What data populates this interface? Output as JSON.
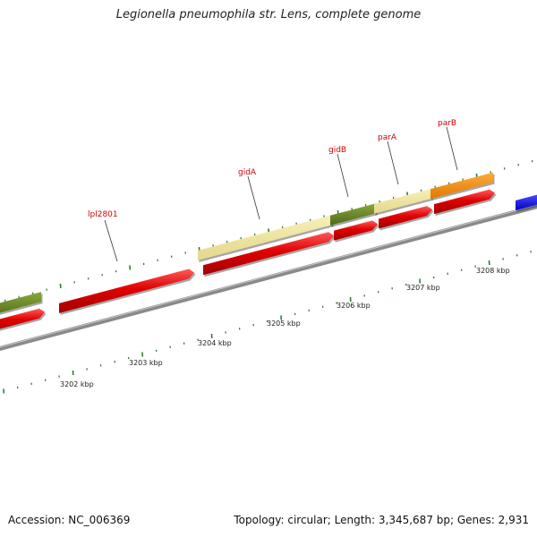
{
  "title": "Legionella pneumophila str. Lens, complete genome",
  "footer": {
    "accession": "Accession: NC_006369",
    "summary": "Topology: circular; Length: 3,345,687 bp; Genes: 2,931"
  },
  "colors": {
    "background": "#ffffff",
    "backbone": "#888888",
    "tick_mark": "#2e7d32",
    "gene_label": "#d40000",
    "cds_red": "#e00000",
    "feature_tan": "#eee39a",
    "feature_olive": "#6b8a24",
    "feature_orange": "#ff8c00",
    "feature_blue": "#1a1aff"
  },
  "ticks": [
    {
      "label": "3202 kbp"
    },
    {
      "label": "3203 kbp"
    },
    {
      "label": "3204 kbp"
    },
    {
      "label": "3205 kbp"
    },
    {
      "label": "3206 kbp"
    },
    {
      "label": "3207 kbp"
    },
    {
      "label": "3208 kbp"
    }
  ],
  "gene_labels": [
    {
      "text": "lpl2801"
    },
    {
      "text": "gidA"
    },
    {
      "text": "gidB"
    },
    {
      "text": "parA"
    },
    {
      "text": "parB"
    }
  ]
}
